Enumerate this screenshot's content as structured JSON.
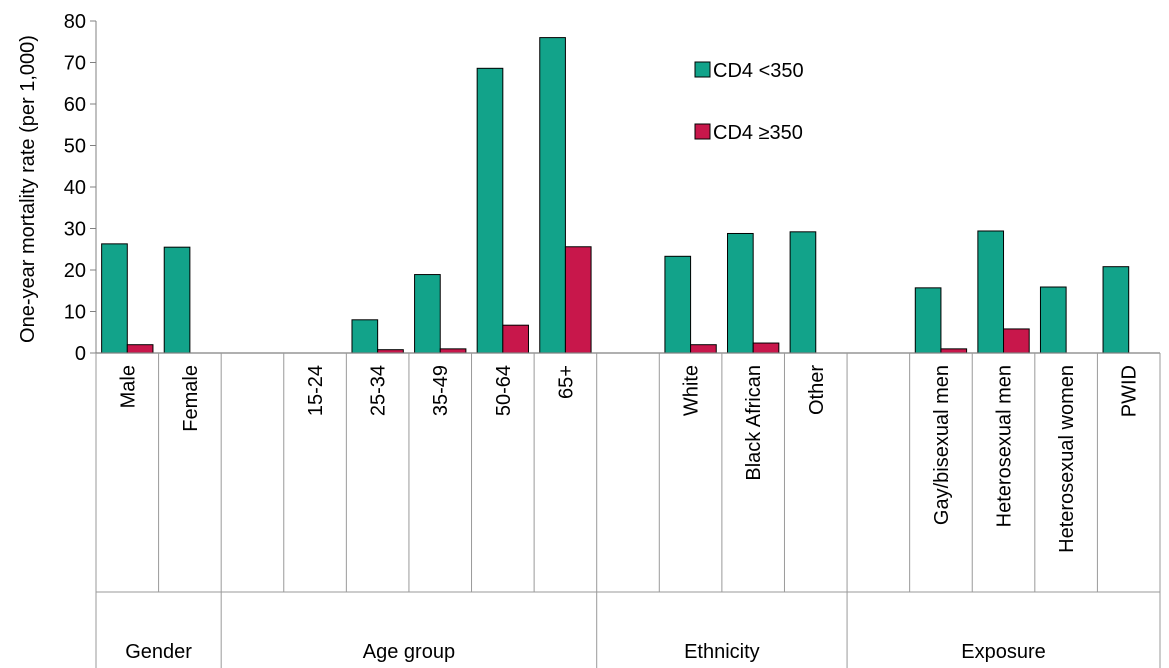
{
  "chart_data": {
    "type": "bar",
    "ylabel": "One-year mortality rate (per 1,000)",
    "ylim": [
      0,
      80
    ],
    "yticks": [
      0,
      10,
      20,
      30,
      40,
      50,
      60,
      70,
      80
    ],
    "grid": false,
    "legend_position": "top-right",
    "slots": [
      {
        "label": "Male",
        "group": 0
      },
      {
        "label": "Female",
        "group": 0
      },
      {
        "label": "",
        "group": null
      },
      {
        "label": "15-24",
        "group": 1
      },
      {
        "label": "25-34",
        "group": 1
      },
      {
        "label": "35-49",
        "group": 1
      },
      {
        "label": "50-64",
        "group": 1
      },
      {
        "label": "65+",
        "group": 1
      },
      {
        "label": "",
        "group": null
      },
      {
        "label": "White",
        "group": 2
      },
      {
        "label": "Black African",
        "group": 2
      },
      {
        "label": "Other",
        "group": 2
      },
      {
        "label": "",
        "group": null
      },
      {
        "label": "Gay/bisexual men",
        "group": 3
      },
      {
        "label": "Heterosexual men",
        "group": 3
      },
      {
        "label": "Heterosexual women",
        "group": 3
      },
      {
        "label": "PWID",
        "group": 3
      }
    ],
    "groups": [
      {
        "label": "Gender",
        "start": 0,
        "end": 2
      },
      {
        "label": "Age group",
        "start": 2,
        "end": 8
      },
      {
        "label": "Ethnicity",
        "start": 8,
        "end": 12
      },
      {
        "label": "Exposure",
        "start": 12,
        "end": 17
      }
    ],
    "series": [
      {
        "name": "CD4 <350",
        "color": "#12a38a",
        "values": [
          26.3,
          25.5,
          null,
          null,
          8.0,
          18.9,
          68.6,
          76.0,
          null,
          23.3,
          28.8,
          29.2,
          null,
          15.7,
          29.4,
          15.9,
          20.8
        ]
      },
      {
        "name": "CD4 ≥350",
        "color": "#c8174b",
        "values": [
          2.0,
          null,
          null,
          null,
          0.8,
          1.0,
          6.7,
          25.6,
          null,
          2.0,
          2.4,
          null,
          null,
          1.0,
          5.8,
          null,
          null
        ]
      }
    ]
  }
}
